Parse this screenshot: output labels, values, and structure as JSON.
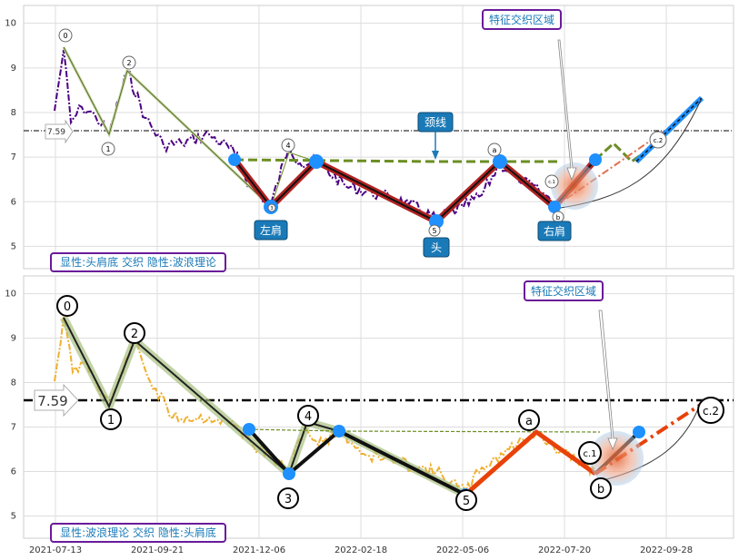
{
  "chart_data": [
    {
      "type": "line",
      "panel": "top",
      "ylim": [
        4.5,
        10.4
      ],
      "yticks": [
        "10",
        "9",
        "8",
        "7",
        "6",
        "5"
      ],
      "grid": true,
      "series_color": "#4b0082",
      "reference_value": 7.59,
      "reference_label": "7.59",
      "wave_points": [
        {
          "label": "0",
          "x": 0.0,
          "y": 9.45
        },
        {
          "label": "1",
          "x": 0.07,
          "y": 7.5
        },
        {
          "label": "2",
          "x": 0.12,
          "y": 8.9
        },
        {
          "label": "3",
          "x": 0.33,
          "y": 5.95
        },
        {
          "label": "4",
          "x": 0.39,
          "y": 6.95
        },
        {
          "label": "5",
          "x": 0.58,
          "y": 5.5
        },
        {
          "label": "a",
          "x": 0.66,
          "y": 6.95
        },
        {
          "label": "b",
          "x": 0.74,
          "y": 5.85
        },
        {
          "label": "c.1",
          "x": 0.76,
          "y": 6.4
        },
        {
          "label": "c.2",
          "x": 0.91,
          "y": 7.5
        }
      ],
      "head_shoulders": [
        {
          "name": "左肩",
          "x": 0.33,
          "y": 5.92
        },
        {
          "name": "头",
          "x": 0.58,
          "y": 5.52
        },
        {
          "name": "右肩",
          "x": 0.74,
          "y": 5.88
        }
      ],
      "neckline_label": "颈线",
      "zone_label": "特征交织区域",
      "caption": "显性:头肩底 交织 隐性:波浪理论"
    },
    {
      "type": "line",
      "panel": "bottom",
      "ylim": [
        4.5,
        10.4
      ],
      "yticks": [
        "10",
        "9",
        "8",
        "7",
        "6",
        "5"
      ],
      "grid": true,
      "series_color": "#f0b030",
      "reference_value": 7.59,
      "reference_label": "7.59",
      "xticks": [
        "2021-07-13",
        "2021-09-21",
        "2021-12-06",
        "2022-02-18",
        "2022-05-06",
        "2022-07-20",
        "2022-09-28"
      ],
      "wave_labels": [
        "0",
        "1",
        "2",
        "3",
        "4",
        "5",
        "a",
        "b",
        "c.1",
        "c.2"
      ],
      "zone_label": "特征交织区域",
      "caption": "显性:波浪理论 交织 隐性:头肩底"
    }
  ],
  "colors": {
    "neckline": "#6b8e23",
    "hs_thick": "#b22222",
    "marker_blue": "#1e90ff",
    "label_box": "#1a7ab8",
    "caption_border": "#6a1b9a",
    "bottom_wave": "#e8420a",
    "wave_band": "#a8c080"
  }
}
